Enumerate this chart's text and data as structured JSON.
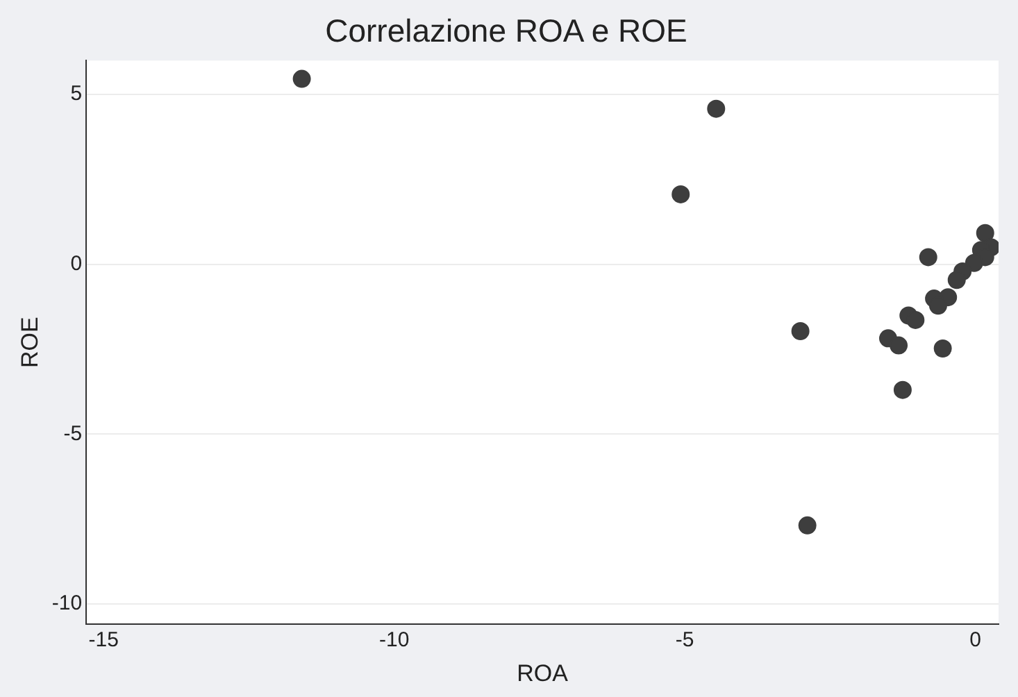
{
  "chart_data": {
    "type": "scatter",
    "title": "Correlazione ROA e ROE",
    "xlabel": "ROA",
    "ylabel": "ROE",
    "x": [
      -11.59,
      -4.46,
      -5.07,
      -3.01,
      -2.89,
      0.17,
      -0.81,
      0.27,
      0.1,
      0.17,
      -0.02,
      -0.12,
      -0.22,
      -0.32,
      -0.47,
      -0.71,
      -0.64,
      -1.15,
      -1.03,
      -1.5,
      -1.32,
      -0.56,
      -1.25
    ],
    "series": [
      {
        "color": "#3e3e3e",
        "values": [
          5.46,
          4.58,
          2.06,
          -1.97,
          -7.69,
          0.92,
          0.21,
          0.5,
          0.42,
          0.21,
          0.04,
          null,
          -0.21,
          -0.46,
          -0.97,
          -1.01,
          -1.22,
          -1.51,
          -1.64,
          -2.18,
          -2.39,
          -2.48,
          -3.7
        ]
      }
    ],
    "xlim": [
      -15.3,
      0.4
    ],
    "xticks": [
      -15,
      -10,
      -5,
      0
    ],
    "ylim": [
      -10.6,
      6
    ],
    "yticks": [
      -10,
      -5,
      0,
      5
    ],
    "grid": "y",
    "legend": false,
    "marker": "circle"
  }
}
